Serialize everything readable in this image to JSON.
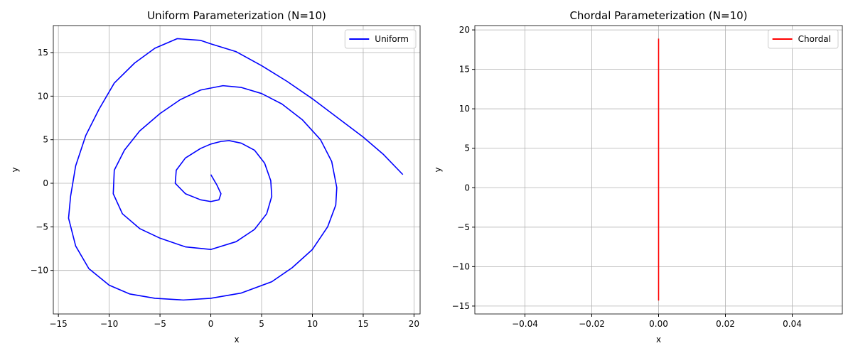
{
  "chart_data": [
    {
      "type": "line",
      "title": "Uniform Parameterization (N=10)",
      "xlabel": "x",
      "ylabel": "y",
      "grid": true,
      "legend": "upper right",
      "xlim": [
        -15.5,
        20.6
      ],
      "ylim": [
        -15,
        18.1
      ],
      "xticks": [
        {
          "value": -15,
          "label": "−15"
        },
        {
          "value": -10,
          "label": "−10"
        },
        {
          "value": -5,
          "label": "−5"
        },
        0,
        5,
        10,
        15,
        20
      ],
      "yticks": [
        {
          "value": -10,
          "label": "−10"
        },
        {
          "value": -5,
          "label": "−5"
        },
        0,
        5,
        10,
        15
      ],
      "series": [
        {
          "name": "Uniform",
          "color": "#0000ff",
          "x": [
            0,
            0.6,
            1,
            0.8,
            0,
            -1,
            -2.5,
            -3.5,
            -3.4,
            -2.5,
            -1,
            0,
            1,
            1.8,
            3,
            4.3,
            5.3,
            5.9,
            6,
            5.5,
            4.3,
            2.5,
            0,
            -2.5,
            -5,
            -7,
            -8.7,
            -9.6,
            -9.5,
            -8.5,
            -7,
            -5,
            -3,
            -1,
            1.2,
            3,
            5,
            7,
            9,
            10.8,
            11.9,
            12.4,
            12.3,
            11.5,
            10,
            8,
            6,
            3,
            0,
            -2.7,
            -5.5,
            -8,
            -10,
            -12,
            -13.3,
            -14,
            -13.8,
            -13.3,
            -12.3,
            -11,
            -9.5,
            -7.5,
            -5.5,
            -3.3,
            -1,
            0,
            2.5,
            5,
            7.5,
            10,
            12.5,
            15,
            17,
            18.9
          ],
          "values": [
            1,
            -0.2,
            -1.2,
            -1.9,
            -2.1,
            -1.9,
            -1.2,
            0,
            1.5,
            2.9,
            4,
            4.5,
            4.8,
            4.9,
            4.6,
            3.8,
            2.3,
            0.3,
            -1.5,
            -3.5,
            -5.3,
            -6.7,
            -7.6,
            -7.3,
            -6.3,
            -5.2,
            -3.5,
            -1.2,
            1.5,
            3.8,
            6,
            8,
            9.6,
            10.7,
            11.2,
            11,
            10.3,
            9.1,
            7.3,
            5,
            2.5,
            -0.5,
            -2.5,
            -5,
            -7.6,
            -9.7,
            -11.3,
            -12.6,
            -13.2,
            -13.4,
            -13.2,
            -12.7,
            -11.7,
            -9.8,
            -7.2,
            -4,
            -1.5,
            2,
            5.5,
            8.5,
            11.5,
            13.8,
            15.5,
            16.6,
            16.4,
            16,
            15.1,
            13.5,
            11.7,
            9.7,
            7.5,
            5.3,
            3.3,
            1
          ]
        }
      ]
    },
    {
      "type": "line",
      "title": "Chordal Parameterization (N=10)",
      "xlabel": "x",
      "ylabel": "y",
      "grid": true,
      "legend": "upper right",
      "xlim": [
        -0.055,
        0.055
      ],
      "ylim": [
        -16,
        20.55
      ],
      "xticks": [
        {
          "value": -0.04,
          "label": "−0.04"
        },
        {
          "value": -0.02,
          "label": "−0.02"
        },
        {
          "value": 0,
          "label": "0.00"
        },
        {
          "value": 0.02,
          "label": "0.02"
        },
        {
          "value": 0.04,
          "label": "0.04"
        }
      ],
      "yticks": [
        {
          "value": -15,
          "label": "−15"
        },
        {
          "value": -10,
          "label": "−10"
        },
        {
          "value": -5,
          "label": "−5"
        },
        0,
        5,
        10,
        15,
        20
      ],
      "series": [
        {
          "name": "Chordal",
          "color": "#ff0000",
          "x": [
            0,
            0
          ],
          "values": [
            18.9,
            -14.3
          ]
        }
      ]
    }
  ]
}
